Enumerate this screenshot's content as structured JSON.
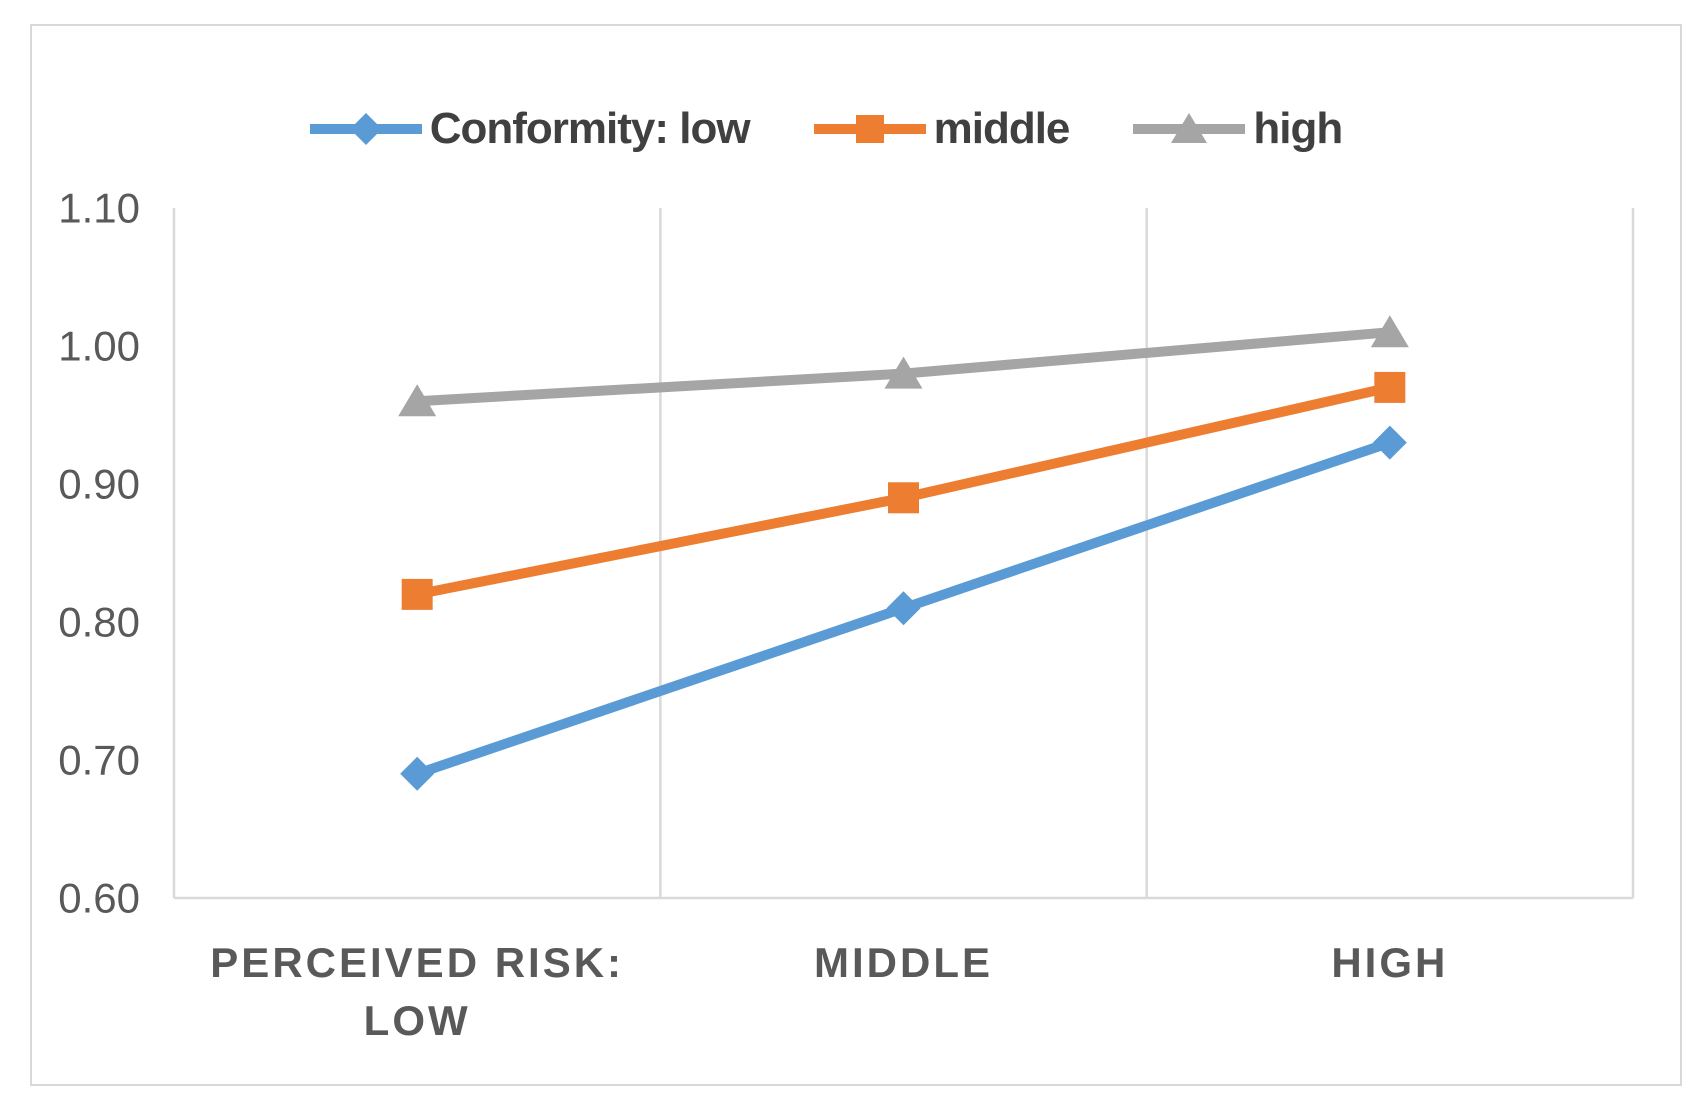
{
  "chart_data": {
    "type": "line",
    "title": "",
    "categories": [
      {
        "lines": [
          "PERCEIVED RISK:",
          "LOW"
        ]
      },
      {
        "lines": [
          "MIDDLE"
        ]
      },
      {
        "lines": [
          "HIGH"
        ]
      }
    ],
    "series": [
      {
        "name": "Conformity: low",
        "marker": "diamond",
        "color": "#5B9BD5",
        "values": [
          0.69,
          0.81,
          0.93
        ]
      },
      {
        "name": "middle",
        "marker": "square",
        "color": "#ED7D31",
        "values": [
          0.82,
          0.89,
          0.97
        ]
      },
      {
        "name": "high",
        "marker": "triangle",
        "color": "#A5A5A5",
        "values": [
          0.96,
          0.98,
          1.01
        ]
      }
    ],
    "y_axis": {
      "min": 0.6,
      "max": 1.1,
      "step": 0.1,
      "tick_labels": [
        "0.60",
        "0.70",
        "0.80",
        "0.90",
        "1.00",
        "1.10"
      ]
    },
    "legend_position": "top",
    "grid": "vertical lines at category boundaries only",
    "colors": {
      "axis": "#D9D9D9",
      "tick_text": "#595959",
      "category_text": "#595959",
      "legend_text": "#404040",
      "background": "#FFFFFF"
    }
  }
}
